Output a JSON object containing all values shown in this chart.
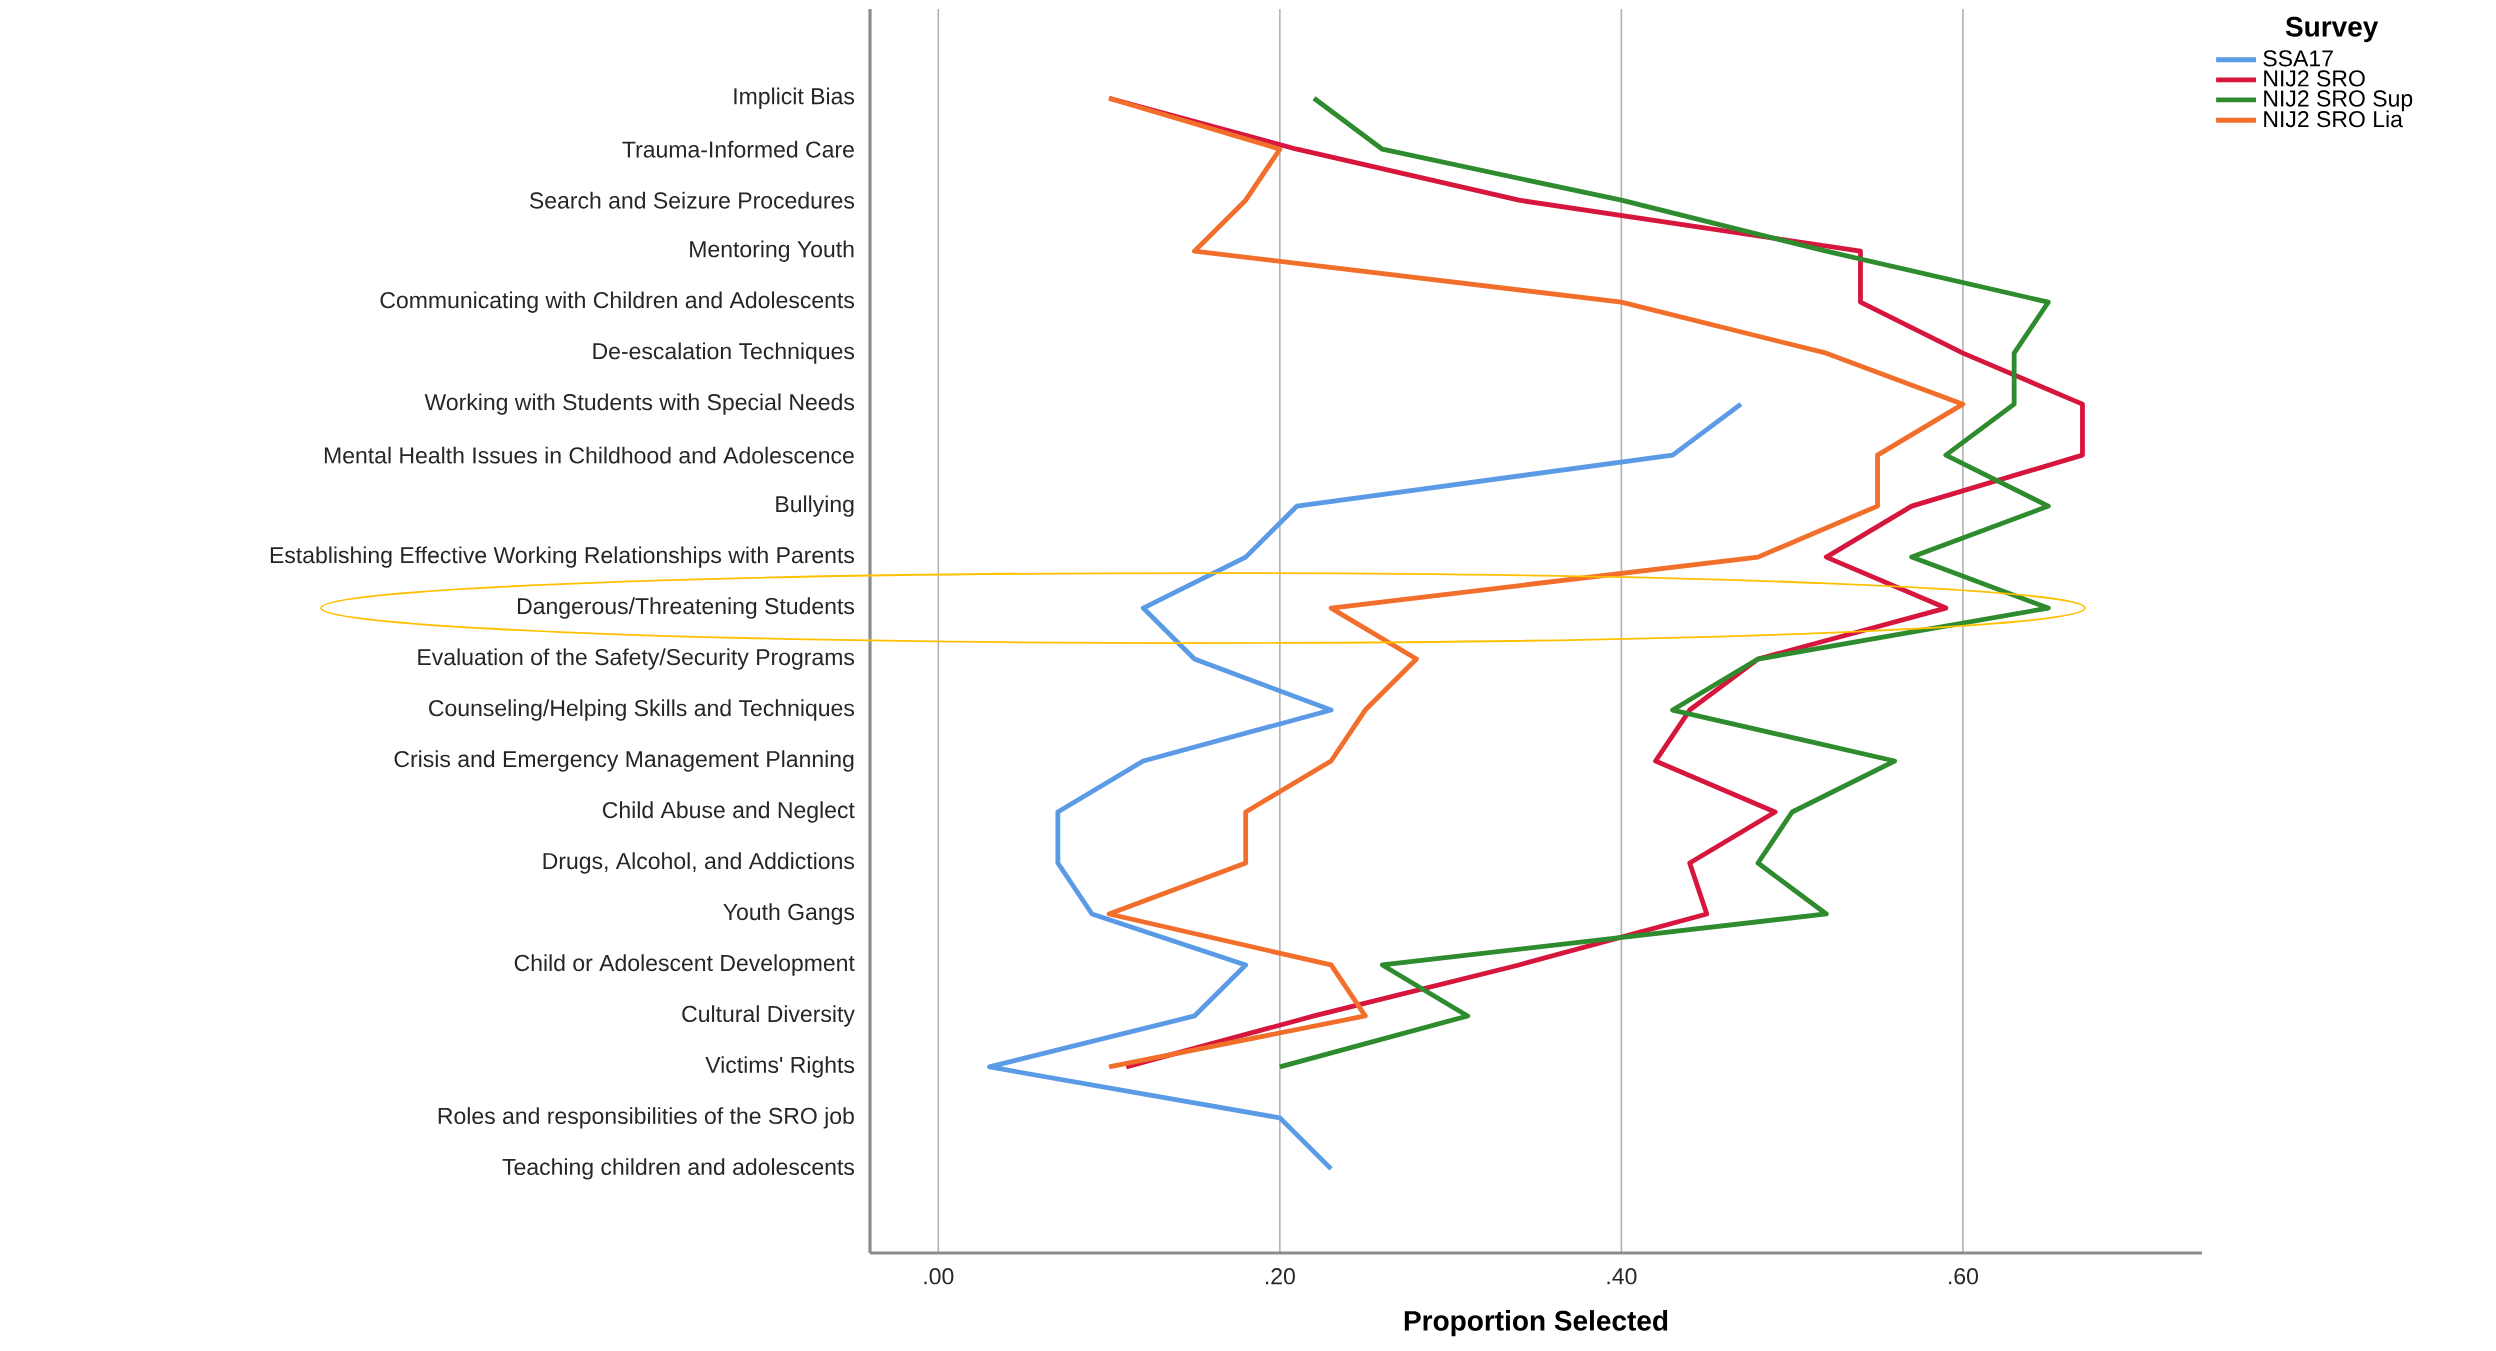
{
  "chart_data": {
    "type": "line",
    "orientation": "horizontal",
    "xlabel": "Proportion Selected",
    "legend_title": "Survey",
    "categories": [
      "Implicit Bias",
      "Trauma-Informed Care",
      "Search and Seizure Procedures",
      "Mentoring Youth",
      "Communicating with Children and Adolescents",
      "De-escalation Techniques",
      "Working with Students with Special Needs",
      "Mental Health Issues in Childhood and Adolescence",
      "Bullying",
      "Establishing Effective Working Relationships with Parents",
      "Dangerous/Threatening Students",
      "Evaluation of the Safety/Security Programs",
      "Counseling/Helping Skills and Techniques",
      "Crisis and Emergency Management Planning",
      "Child Abuse and Neglect",
      "Drugs, Alcohol, and Addictions",
      "Youth Gangs",
      "Child or Adolescent Development",
      "Cultural Diversity",
      "Victims' Rights",
      "Roles and responsibilities of the SRO job",
      "Teaching children and adolescents"
    ],
    "series": [
      {
        "name": "SSA17",
        "color": "#5b9be6",
        "values": [
          null,
          null,
          null,
          null,
          null,
          null,
          0.47,
          0.43,
          0.21,
          0.18,
          0.12,
          0.15,
          0.23,
          0.12,
          0.07,
          0.07,
          0.09,
          0.18,
          0.15,
          0.03,
          0.2,
          0.23
        ]
      },
      {
        "name": "NIJ2 SRO",
        "color": "#d6163c",
        "values": [
          0.1,
          0.21,
          0.34,
          0.54,
          0.54,
          0.6,
          0.67,
          0.67,
          0.57,
          0.52,
          0.59,
          0.48,
          0.44,
          0.42,
          0.49,
          0.44,
          0.45,
          0.34,
          0.22,
          0.11,
          null,
          null
        ]
      },
      {
        "name": "NIJ2 SRO Sup",
        "color": "#2e8b2e",
        "values": [
          0.22,
          0.26,
          0.4,
          0.52,
          0.65,
          0.63,
          0.63,
          0.59,
          0.65,
          0.57,
          0.65,
          0.48,
          0.43,
          0.56,
          0.5,
          0.48,
          0.52,
          0.26,
          0.31,
          0.2,
          null,
          null
        ]
      },
      {
        "name": "NIJ2 SRO Lia",
        "color": "#f26e2b",
        "values": [
          0.1,
          0.2,
          0.18,
          0.15,
          0.4,
          0.52,
          0.6,
          0.55,
          0.55,
          0.48,
          0.23,
          0.28,
          0.25,
          0.23,
          0.18,
          0.18,
          0.1,
          0.23,
          0.25,
          0.1,
          null,
          null
        ]
      }
    ],
    "xlim": [
      -0.04,
      0.74
    ],
    "xticks": [
      {
        "value": 0,
        "label": ".00"
      },
      {
        "value": 0.2,
        "label": ".20"
      },
      {
        "value": 0.4,
        "label": ".40"
      },
      {
        "value": 0.6,
        "label": ".60"
      }
    ],
    "grid": "x",
    "legend": "top right",
    "marker": "none",
    "line_style": "solid"
  }
}
